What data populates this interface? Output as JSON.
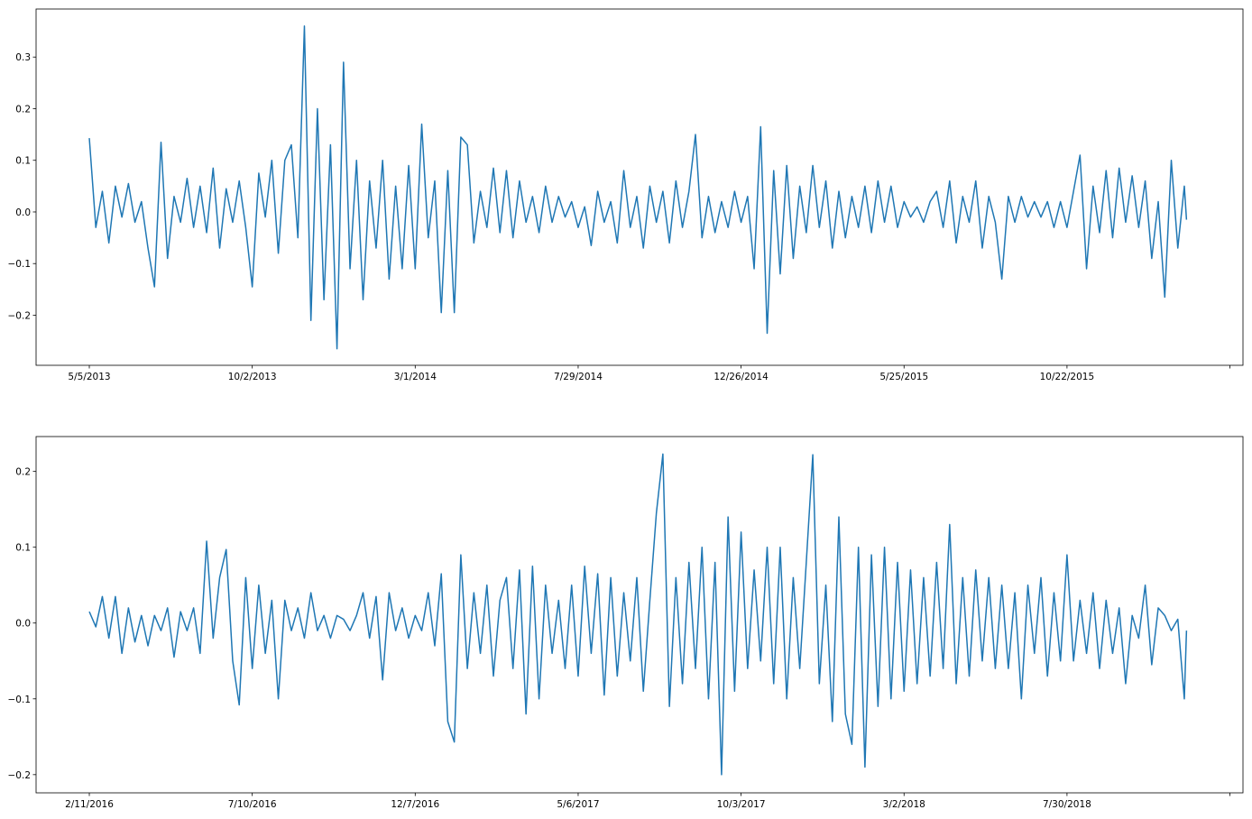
{
  "chart_data": [
    {
      "type": "line",
      "x": [
        0,
        6,
        12,
        18,
        24,
        30,
        36,
        42,
        48,
        54,
        60,
        66,
        72,
        78,
        84,
        90,
        96,
        102,
        108,
        114,
        120,
        126,
        132,
        138,
        144,
        150,
        156,
        162,
        168,
        174,
        180,
        186,
        192,
        198,
        204,
        210,
        216,
        222,
        228,
        234,
        240,
        246,
        252,
        258,
        264,
        270,
        276,
        282,
        288,
        294,
        300,
        306,
        312,
        318,
        324,
        330,
        336,
        342,
        348,
        354,
        360,
        366,
        372,
        378,
        384,
        390,
        396,
        402,
        408,
        414,
        420,
        426,
        432,
        438,
        444,
        450,
        456,
        462,
        468,
        474,
        480,
        486,
        492,
        498,
        504,
        510,
        516,
        522,
        528,
        534,
        540,
        546,
        552,
        558,
        564,
        570,
        576,
        582,
        588,
        594,
        600,
        606,
        612,
        618,
        624,
        630,
        636,
        642,
        648,
        654,
        660,
        666,
        672,
        678,
        684,
        690,
        696,
        702,
        708,
        714,
        720,
        726,
        732,
        738,
        744,
        750,
        756,
        762,
        768,
        774,
        780,
        786,
        792,
        798,
        804,
        810,
        816,
        822,
        828,
        834,
        840,
        846,
        852,
        858,
        864,
        870,
        876,
        882,
        888,
        894,
        900,
        906,
        912,
        918,
        924,
        930,
        936,
        942,
        948,
        954,
        960,
        966,
        972,
        978,
        984,
        990,
        996,
        1002,
        1008,
        1010
      ],
      "series": [
        {
          "color": "#1f77b4",
          "values": [
            0.143,
            -0.03,
            0.04,
            -0.06,
            0.05,
            -0.01,
            0.055,
            -0.02,
            0.02,
            -0.07,
            -0.145,
            0.135,
            -0.09,
            0.03,
            -0.02,
            0.065,
            -0.03,
            0.05,
            -0.04,
            0.085,
            -0.07,
            0.045,
            -0.02,
            0.06,
            -0.03,
            -0.145,
            0.075,
            -0.01,
            0.1,
            -0.08,
            0.1,
            0.13,
            -0.05,
            0.36,
            -0.21,
            0.2,
            -0.17,
            0.13,
            -0.265,
            0.29,
            -0.11,
            0.1,
            -0.17,
            0.06,
            -0.07,
            0.1,
            -0.13,
            0.05,
            -0.11,
            0.09,
            -0.11,
            0.17,
            -0.05,
            0.06,
            -0.195,
            0.08,
            -0.195,
            0.145,
            0.13,
            -0.06,
            0.04,
            -0.03,
            0.085,
            -0.04,
            0.08,
            -0.05,
            0.06,
            -0.02,
            0.03,
            -0.04,
            0.05,
            -0.02,
            0.03,
            -0.01,
            0.02,
            -0.03,
            0.01,
            -0.065,
            0.04,
            -0.02,
            0.02,
            -0.06,
            0.08,
            -0.03,
            0.03,
            -0.07,
            0.05,
            -0.02,
            0.04,
            -0.06,
            0.06,
            -0.03,
            0.04,
            0.15,
            -0.05,
            0.03,
            -0.04,
            0.02,
            -0.03,
            0.04,
            -0.02,
            0.03,
            -0.11,
            0.165,
            -0.235,
            0.08,
            -0.12,
            0.09,
            -0.09,
            0.05,
            -0.04,
            0.09,
            -0.03,
            0.06,
            -0.07,
            0.04,
            -0.05,
            0.03,
            -0.03,
            0.05,
            -0.04,
            0.06,
            -0.02,
            0.05,
            -0.03,
            0.02,
            -0.01,
            0.01,
            -0.02,
            0.02,
            0.04,
            -0.03,
            0.06,
            -0.06,
            0.03,
            -0.02,
            0.06,
            -0.07,
            0.03,
            -0.02,
            -0.13,
            0.03,
            -0.02,
            0.03,
            -0.01,
            0.02,
            -0.01,
            0.02,
            -0.03,
            0.02,
            -0.03,
            0.04,
            0.11,
            -0.11,
            0.05,
            -0.04,
            0.08,
            -0.05,
            0.085,
            -0.02,
            0.07,
            -0.03,
            0.06,
            -0.09,
            0.02,
            -0.165,
            0.1,
            -0.07,
            0.05,
            -0.015
          ]
        }
      ],
      "xlim": [
        -49,
        1062
      ],
      "xticks": [
        {
          "value": 0,
          "label": "5/5/2013"
        },
        {
          "value": 150,
          "label": "10/2/2013"
        },
        {
          "value": 300,
          "label": "3/1/2014"
        },
        {
          "value": 450,
          "label": "7/29/2014"
        },
        {
          "value": 600,
          "label": "12/26/2014"
        },
        {
          "value": 750,
          "label": "5/25/2015"
        },
        {
          "value": 900,
          "label": "10/22/2015"
        },
        {
          "value": 1050,
          "label": null
        }
      ],
      "ylim": [
        -0.297,
        0.393
      ],
      "yticks": [
        {
          "value": -0.2,
          "label": "−0.2"
        },
        {
          "value": -0.1,
          "label": "−0.1"
        },
        {
          "value": 0,
          "label": "0.0"
        },
        0.1,
        0.2,
        0.3
      ]
    },
    {
      "type": "line",
      "x": [
        0,
        6,
        12,
        18,
        24,
        30,
        36,
        42,
        48,
        54,
        60,
        66,
        72,
        78,
        84,
        90,
        96,
        102,
        108,
        114,
        120,
        126,
        132,
        138,
        144,
        150,
        156,
        162,
        168,
        174,
        180,
        186,
        192,
        198,
        204,
        210,
        216,
        222,
        228,
        234,
        240,
        246,
        252,
        258,
        264,
        270,
        276,
        282,
        288,
        294,
        300,
        306,
        312,
        318,
        324,
        330,
        336,
        342,
        348,
        354,
        360,
        366,
        372,
        378,
        384,
        390,
        396,
        402,
        408,
        414,
        420,
        426,
        432,
        438,
        444,
        450,
        456,
        462,
        468,
        474,
        480,
        486,
        492,
        498,
        504,
        510,
        516,
        522,
        528,
        534,
        540,
        546,
        552,
        558,
        564,
        570,
        576,
        582,
        588,
        594,
        600,
        606,
        612,
        618,
        624,
        630,
        636,
        642,
        648,
        654,
        660,
        666,
        672,
        678,
        684,
        690,
        696,
        702,
        708,
        714,
        720,
        726,
        732,
        738,
        744,
        750,
        756,
        762,
        768,
        774,
        780,
        786,
        792,
        798,
        804,
        810,
        816,
        822,
        828,
        834,
        840,
        846,
        852,
        858,
        864,
        870,
        876,
        882,
        888,
        894,
        900,
        906,
        912,
        918,
        924,
        930,
        936,
        942,
        948,
        954,
        960,
        966,
        972,
        978,
        984,
        990,
        996,
        1002,
        1008,
        1010
      ],
      "series": [
        {
          "color": "#1f77b4",
          "values": [
            0.015,
            -0.005,
            0.035,
            -0.02,
            0.035,
            -0.04,
            0.02,
            -0.025,
            0.01,
            -0.03,
            0.01,
            -0.01,
            0.02,
            -0.045,
            0.015,
            -0.01,
            0.02,
            -0.04,
            0.108,
            -0.02,
            0.06,
            0.097,
            -0.05,
            -0.108,
            0.06,
            -0.06,
            0.05,
            -0.04,
            0.03,
            -0.1,
            0.03,
            -0.01,
            0.02,
            -0.02,
            0.04,
            -0.01,
            0.01,
            -0.02,
            0.01,
            0.005,
            -0.01,
            0.01,
            0.04,
            -0.02,
            0.035,
            -0.075,
            0.04,
            -0.01,
            0.02,
            -0.02,
            0.01,
            -0.01,
            0.04,
            -0.03,
            0.065,
            -0.13,
            -0.157,
            0.09,
            -0.06,
            0.04,
            -0.04,
            0.05,
            -0.07,
            0.03,
            0.06,
            -0.06,
            0.07,
            -0.12,
            0.075,
            -0.1,
            0.05,
            -0.04,
            0.03,
            -0.06,
            0.05,
            -0.07,
            0.075,
            -0.04,
            0.065,
            -0.095,
            0.06,
            -0.07,
            0.04,
            -0.05,
            0.06,
            -0.09,
            0.03,
            0.145,
            0.223,
            -0.11,
            0.06,
            -0.08,
            0.08,
            -0.06,
            0.1,
            -0.1,
            0.08,
            -0.2,
            0.14,
            -0.09,
            0.12,
            -0.06,
            0.07,
            -0.05,
            0.1,
            -0.08,
            0.1,
            -0.1,
            0.06,
            -0.06,
            0.08,
            0.222,
            -0.08,
            0.05,
            -0.13,
            0.14,
            -0.12,
            -0.16,
            0.1,
            -0.19,
            0.09,
            -0.11,
            0.1,
            -0.1,
            0.08,
            -0.09,
            0.07,
            -0.08,
            0.06,
            -0.07,
            0.08,
            -0.06,
            0.13,
            -0.08,
            0.06,
            -0.07,
            0.07,
            -0.05,
            0.06,
            -0.06,
            0.05,
            -0.06,
            0.04,
            -0.1,
            0.05,
            -0.04,
            0.06,
            -0.07,
            0.04,
            -0.05,
            0.09,
            -0.05,
            0.03,
            -0.04,
            0.04,
            -0.06,
            0.03,
            -0.04,
            0.02,
            -0.08,
            0.01,
            -0.02,
            0.05,
            -0.055,
            0.02,
            0.01,
            -0.01,
            0.005,
            -0.1,
            -0.01
          ]
        }
      ],
      "xlim": [
        -49,
        1062
      ],
      "xticks": [
        {
          "value": 0,
          "label": "2/11/2016"
        },
        {
          "value": 150,
          "label": "7/10/2016"
        },
        {
          "value": 300,
          "label": "12/7/2016"
        },
        {
          "value": 450,
          "label": "5/6/2017"
        },
        {
          "value": 600,
          "label": "10/3/2017"
        },
        {
          "value": 750,
          "label": "3/2/2018"
        },
        {
          "value": 900,
          "label": "7/30/2018"
        },
        {
          "value": 1050,
          "label": null
        }
      ],
      "ylim": [
        -0.224,
        0.246
      ],
      "yticks": [
        {
          "value": -0.2,
          "label": "−0.2"
        },
        {
          "value": -0.1,
          "label": "−0.1"
        },
        {
          "value": 0,
          "label": "0.0"
        },
        0.1,
        0.2
      ]
    }
  ]
}
